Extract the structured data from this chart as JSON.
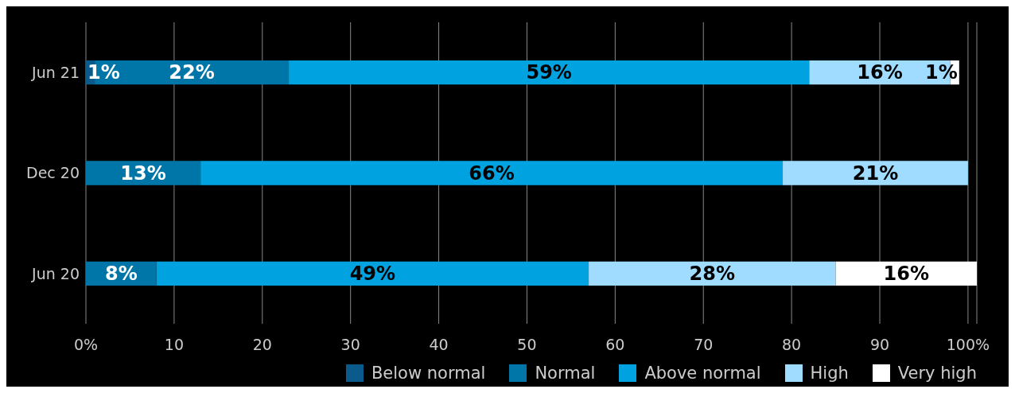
{
  "chart_data": {
    "type": "bar",
    "orientation": "horizontal",
    "stacked": true,
    "categories": [
      "Jun 21",
      "Dec 20",
      "Jun 20"
    ],
    "series": [
      {
        "name": "Below normal",
        "color": "#0b5a8c",
        "values": [
          1,
          null,
          null
        ],
        "value_labels": [
          "1%",
          null,
          null
        ]
      },
      {
        "name": "Normal",
        "color": "#0076a8",
        "values": [
          22,
          13,
          8
        ],
        "value_labels": [
          "22%",
          "13%",
          "8%"
        ]
      },
      {
        "name": "Above normal",
        "color": "#00a3e0",
        "values": [
          59,
          66,
          49
        ],
        "value_labels": [
          "59%",
          "66%",
          "49%"
        ]
      },
      {
        "name": "High",
        "color": "#a0dcff",
        "values": [
          16,
          21,
          28
        ],
        "value_labels": [
          "16%",
          "21%",
          "28%"
        ]
      },
      {
        "name": "Very high",
        "color": "#ffffff",
        "values": [
          1,
          null,
          16
        ],
        "value_labels": [
          "1%",
          null,
          "16%"
        ]
      }
    ],
    "xlim": [
      0,
      101
    ],
    "xticks": [
      {
        "value": 0,
        "label": "0%"
      },
      10,
      20,
      30,
      40,
      50,
      60,
      70,
      80,
      90,
      {
        "value": 100,
        "label": "100%"
      }
    ],
    "grid": "x",
    "legend": "bottom right"
  }
}
